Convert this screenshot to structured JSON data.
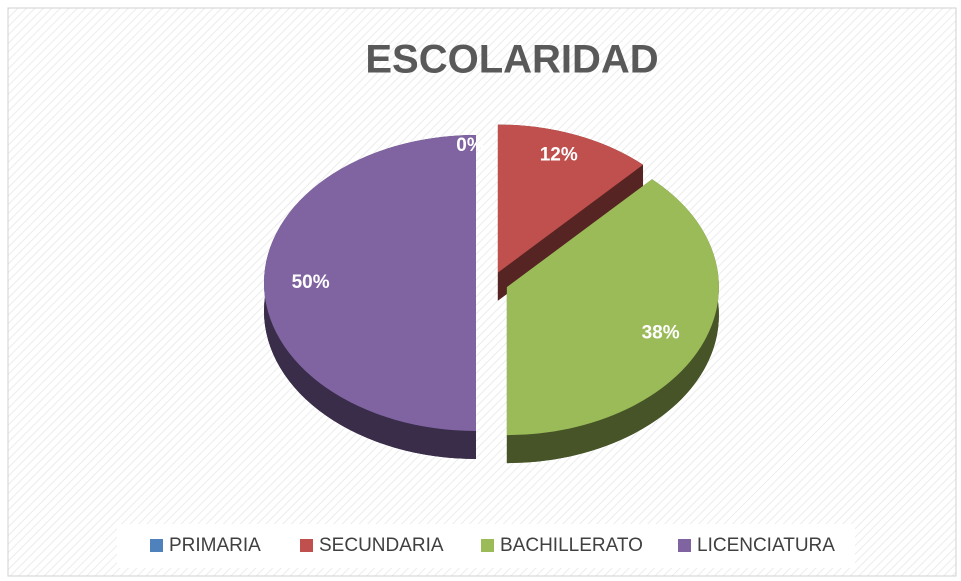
{
  "chart_data": {
    "type": "pie",
    "title": "ESCOLARIDAD",
    "categories": [
      "PRIMARIA",
      "SECUNDARIA",
      "BACHILLERATO",
      "LICENCIATURA"
    ],
    "values": [
      0,
      12,
      38,
      50
    ],
    "value_labels": [
      "0%",
      "12%",
      "38%",
      "50%"
    ],
    "colors": [
      "#4f81bd",
      "#c0504d",
      "#9bbb59",
      "#8064a2"
    ]
  }
}
